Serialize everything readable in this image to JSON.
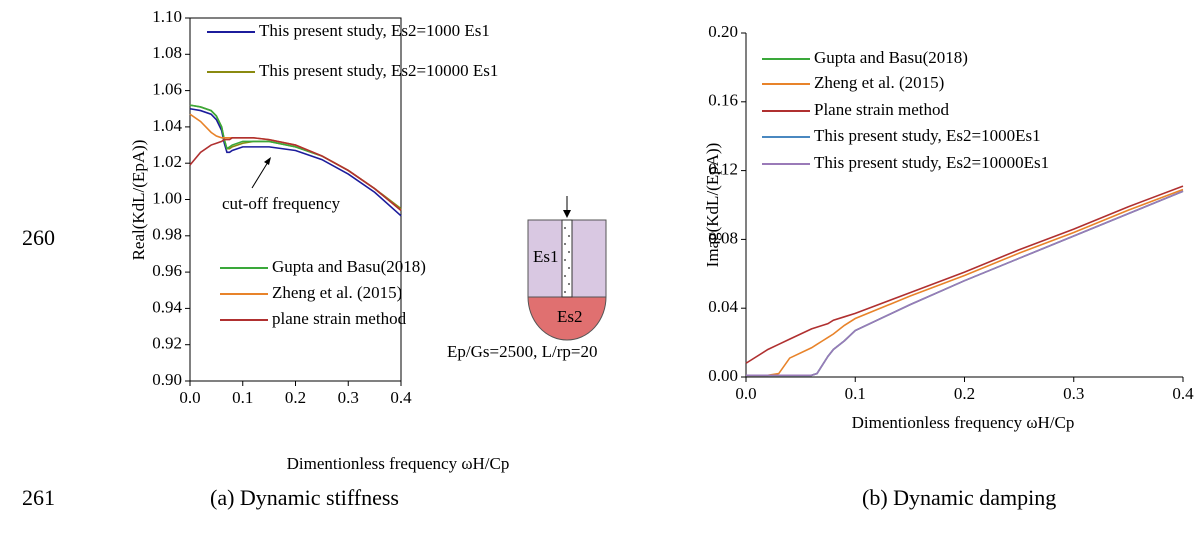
{
  "line_numbers": [
    "260",
    "261"
  ],
  "captions": [
    "(a)  Dynamic stiffness",
    "(b) Dynamic damping"
  ],
  "chart_data": [
    {
      "type": "line",
      "ylabel": "Real(KdL/(EpA))",
      "xlabel": "Dimentionless frequency ωH/Cp",
      "xlim": [
        0,
        0.4
      ],
      "ylim": [
        0.9,
        1.1
      ],
      "xticks": [
        {
          "value": 0,
          "label": "0.0"
        },
        {
          "value": 0.1,
          "label": "0.1"
        },
        {
          "value": 0.2,
          "label": "0.2"
        },
        {
          "value": 0.3,
          "label": "0.3"
        },
        {
          "value": 0.4,
          "label": "0.4"
        }
      ],
      "yticks": [
        {
          "value": 0.9,
          "label": "0.90"
        },
        {
          "value": 0.92,
          "label": "0.92"
        },
        {
          "value": 0.94,
          "label": "0.94"
        },
        {
          "value": 0.96,
          "label": "0.96"
        },
        {
          "value": 0.98,
          "label": "0.98"
        },
        {
          "value": 1.0,
          "label": "1.00"
        },
        {
          "value": 1.02,
          "label": "1.02"
        },
        {
          "value": 1.04,
          "label": "1.04"
        },
        {
          "value": 1.06,
          "label": "1.06"
        },
        {
          "value": 1.08,
          "label": "1.08"
        },
        {
          "value": 1.1,
          "label": "1.10"
        }
      ],
      "x": [
        0,
        0.02,
        0.04,
        0.05,
        0.06,
        0.065,
        0.07,
        0.075,
        0.08,
        0.1,
        0.12,
        0.15,
        0.2,
        0.25,
        0.3,
        0.35,
        0.4
      ],
      "series": [
        {
          "name": "This present study, Es2=1000 Es1",
          "color": "#1c1c9c",
          "values": [
            1.05,
            1.049,
            1.047,
            1.044,
            1.038,
            1.031,
            1.026,
            1.026,
            1.027,
            1.029,
            1.029,
            1.029,
            1.027,
            1.022,
            1.014,
            1.004,
            0.991
          ]
        },
        {
          "name": "This present study, Es2=10000 Es1",
          "color": "#8a8a10",
          "values": [
            1.052,
            1.051,
            1.049,
            1.046,
            1.04,
            1.033,
            1.028,
            1.028,
            1.029,
            1.031,
            1.032,
            1.032,
            1.029,
            1.024,
            1.016,
            1.006,
            0.995
          ]
        },
        {
          "name": "Gupta and Basu(2018)",
          "color": "#3aa83a",
          "values": [
            1.052,
            1.051,
            1.049,
            1.046,
            1.04,
            1.033,
            1.028,
            1.029,
            1.03,
            1.032,
            1.032,
            1.032,
            1.029,
            1.024,
            1.016,
            1.006,
            0.994
          ]
        },
        {
          "name": "Zheng et al. (2015)",
          "color": "#e8832a",
          "values": [
            1.047,
            1.043,
            1.037,
            1.035,
            1.034,
            1.034,
            1.034,
            1.034,
            1.034,
            1.034,
            1.034,
            1.033,
            1.03,
            1.024,
            1.016,
            1.006,
            0.994
          ]
        },
        {
          "name": "plane strain method",
          "color": "#b03030",
          "values": [
            1.019,
            1.026,
            1.03,
            1.031,
            1.032,
            1.033,
            1.033,
            1.033,
            1.034,
            1.034,
            1.034,
            1.033,
            1.03,
            1.024,
            1.016,
            1.006,
            0.994
          ]
        }
      ],
      "annotations": [
        "cut-off frequency",
        "Ep/Gs=2500,  L/rp=20",
        "Es1",
        "Es2"
      ]
    },
    {
      "type": "line",
      "ylabel": "Imag(KdL/(EpA))",
      "xlabel": "Dimentionless frequency ωH/Cp",
      "xlim": [
        0,
        0.4
      ],
      "ylim": [
        0,
        0.2
      ],
      "xticks": [
        {
          "value": 0,
          "label": "0.0"
        },
        {
          "value": 0.1,
          "label": "0.1"
        },
        {
          "value": 0.2,
          "label": "0.2"
        },
        {
          "value": 0.3,
          "label": "0.3"
        },
        {
          "value": 0.4,
          "label": "0.4"
        }
      ],
      "yticks": [
        {
          "value": 0,
          "label": "0.00"
        },
        {
          "value": 0.04,
          "label": "0.04"
        },
        {
          "value": 0.08,
          "label": "0.08"
        },
        {
          "value": 0.12,
          "label": "0.12"
        },
        {
          "value": 0.16,
          "label": "0.16"
        },
        {
          "value": 0.2,
          "label": "0.20"
        }
      ],
      "x": [
        0,
        0.02,
        0.03,
        0.04,
        0.06,
        0.065,
        0.07,
        0.075,
        0.08,
        0.09,
        0.1,
        0.15,
        0.2,
        0.25,
        0.3,
        0.35,
        0.4
      ],
      "series": [
        {
          "name": "Gupta and Basu(2018)",
          "color": "#3aa83a",
          "values": [
            0.001,
            0.001,
            0.001,
            0.001,
            0.001,
            0.002,
            0.007,
            0.012,
            0.016,
            0.021,
            0.027,
            0.042,
            0.056,
            0.069,
            0.082,
            0.095,
            0.108
          ]
        },
        {
          "name": "Zheng et al. (2015)",
          "color": "#e8832a",
          "values": [
            0.001,
            0.001,
            0.002,
            0.011,
            0.017,
            0.019,
            0.021,
            0.023,
            0.025,
            0.03,
            0.034,
            0.047,
            0.059,
            0.072,
            0.084,
            0.097,
            0.109
          ]
        },
        {
          "name": "Plane strain method",
          "color": "#b03030",
          "values": [
            0.008,
            0.016,
            0.019,
            0.022,
            0.028,
            0.029,
            0.03,
            0.031,
            0.033,
            0.035,
            0.037,
            0.049,
            0.061,
            0.074,
            0.086,
            0.099,
            0.111
          ]
        },
        {
          "name": "This present study, Es2=1000Es1",
          "color": "#4a88c0",
          "values": [
            0.001,
            0.001,
            0.001,
            0.001,
            0.001,
            0.002,
            0.007,
            0.012,
            0.016,
            0.021,
            0.027,
            0.042,
            0.056,
            0.069,
            0.082,
            0.095,
            0.108
          ]
        },
        {
          "name": "This present study, Es2=10000Es1",
          "color": "#9a7ab8",
          "values": [
            0.001,
            0.001,
            0.001,
            0.001,
            0.001,
            0.002,
            0.007,
            0.012,
            0.016,
            0.021,
            0.027,
            0.042,
            0.056,
            0.069,
            0.082,
            0.095,
            0.108
          ]
        }
      ]
    }
  ]
}
